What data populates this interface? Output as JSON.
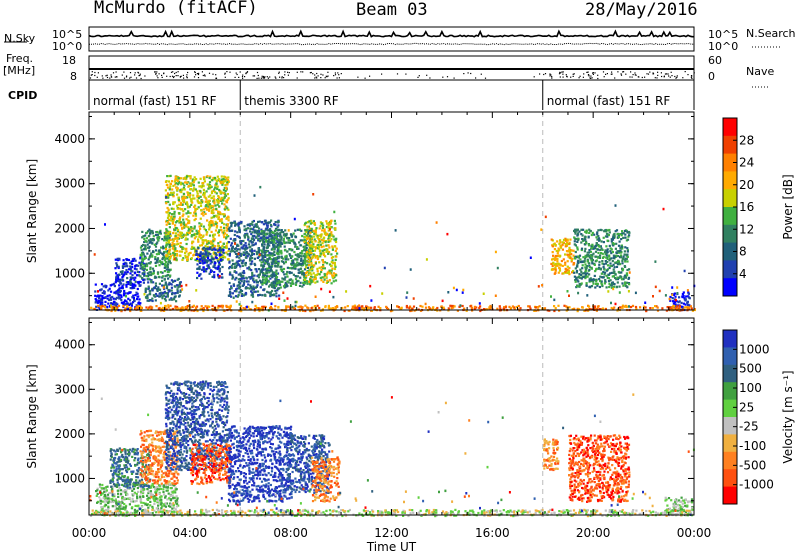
{
  "header": {
    "title": "McMurdo (fitACF)",
    "beam": "Beam 03",
    "date": "28/May/2016"
  },
  "left_labels": {
    "nsky": "N.Sky",
    "freq": "Freq.",
    "freq_unit": "[MHz]",
    "cpid": "CPID"
  },
  "right_labels": {
    "nsearch": "N.Search",
    "nave": "Nave"
  },
  "noise_axis": {
    "left_ticks": [
      "10^5",
      "10^0"
    ],
    "right_ticks": [
      "10^5",
      "10^0"
    ]
  },
  "freq_axis": {
    "left_ticks": [
      "18",
      "8"
    ],
    "right_ticks": [
      "60",
      "0"
    ]
  },
  "cpid_segments": [
    {
      "label": "normal (fast) 151 RF",
      "start_hour": 0,
      "end_hour": 6
    },
    {
      "label": "themis 3300 RF",
      "start_hour": 6,
      "end_hour": 18
    },
    {
      "label": "normal (fast) 151 RF",
      "start_hour": 18,
      "end_hour": 24
    }
  ],
  "chart_data": [
    {
      "type": "heatmap",
      "name": "power",
      "ylabel": "Slant Range [km]",
      "xlabel": "",
      "x_ticks": [
        "00:00",
        "04:00",
        "08:00",
        "12:00",
        "16:00",
        "20:00",
        "00:00"
      ],
      "xlim_hours": [
        0,
        24
      ],
      "ylim": [
        180,
        4600
      ],
      "y_ticks": [
        1000,
        2000,
        3000,
        4000
      ],
      "colorbar": {
        "label": "Power [dB]",
        "ticks": [
          "28",
          "24",
          "20",
          "16",
          "12",
          "8",
          "4"
        ],
        "colors": [
          "#ff0000",
          "#f04000",
          "#ff8000",
          "#ffaa00",
          "#c8d000",
          "#40b040",
          "#308060",
          "#20607a",
          "#2040b0",
          "#0000ff"
        ]
      },
      "scan_boundaries_hours": [
        6,
        18
      ],
      "blobs": [
        {
          "t0": 0.2,
          "t1": 2.0,
          "r0": 200,
          "r1": 800,
          "level": 9
        },
        {
          "t0": 1.0,
          "t1": 2.2,
          "r0": 800,
          "r1": 1400,
          "level": 8
        },
        {
          "t0": 2.2,
          "t1": 3.6,
          "r0": 400,
          "r1": 900,
          "level": 7
        },
        {
          "t0": 2.0,
          "t1": 3.2,
          "r0": 900,
          "r1": 2000,
          "level": 6
        },
        {
          "t0": 3.0,
          "t1": 5.5,
          "r0": 1300,
          "r1": 3200,
          "level": 4
        },
        {
          "t0": 4.2,
          "t1": 5.3,
          "r0": 900,
          "r1": 1600,
          "level": 8
        },
        {
          "t0": 5.5,
          "t1": 7.5,
          "r0": 500,
          "r1": 2200,
          "level": 7
        },
        {
          "t0": 6.8,
          "t1": 8.8,
          "r0": 700,
          "r1": 2000,
          "level": 6
        },
        {
          "t0": 8.5,
          "t1": 9.8,
          "r0": 800,
          "r1": 2200,
          "level": 4
        },
        {
          "t0": 18.3,
          "t1": 19.2,
          "r0": 1000,
          "r1": 1800,
          "level": 3
        },
        {
          "t0": 19.2,
          "t1": 21.4,
          "r0": 700,
          "r1": 2000,
          "level": 6
        },
        {
          "t0": 23.0,
          "t1": 23.8,
          "r0": 200,
          "r1": 600,
          "level": 9
        },
        {
          "t0": 0.0,
          "t1": 24.0,
          "r0": 180,
          "r1": 300,
          "level": 2
        }
      ]
    },
    {
      "type": "heatmap",
      "name": "velocity",
      "ylabel": "Slant Range [km]",
      "xlabel": "Time UT",
      "x_ticks": [
        "00:00",
        "04:00",
        "08:00",
        "12:00",
        "16:00",
        "20:00",
        "00:00"
      ],
      "xlim_hours": [
        0,
        24
      ],
      "ylim": [
        180,
        4600
      ],
      "y_ticks": [
        1000,
        2000,
        3000,
        4000
      ],
      "colorbar": {
        "label": "Velocity [m s⁻¹]",
        "ticks": [
          "1000",
          "500",
          "100",
          "25",
          "-25",
          "-100",
          "-500",
          "-1000"
        ],
        "colors": [
          "#2030c0",
          "#3060b0",
          "#306080",
          "#40a040",
          "#60d040",
          "#c0c0c0",
          "#f0b040",
          "#ff8020",
          "#ff5010",
          "#ff0000"
        ]
      },
      "scan_boundaries_hours": [
        6,
        18
      ],
      "blobs": [
        {
          "t0": 0.2,
          "t1": 3.5,
          "r0": 200,
          "r1": 900,
          "level": 4
        },
        {
          "t0": 0.8,
          "t1": 2.4,
          "r0": 800,
          "r1": 1700,
          "level": 2
        },
        {
          "t0": 2.0,
          "t1": 3.5,
          "r0": 900,
          "r1": 2100,
          "level": 7
        },
        {
          "t0": 3.0,
          "t1": 5.5,
          "r0": 1200,
          "r1": 3200,
          "level": 1
        },
        {
          "t0": 4.0,
          "t1": 5.6,
          "r0": 900,
          "r1": 1800,
          "level": 8
        },
        {
          "t0": 5.5,
          "t1": 8.0,
          "r0": 500,
          "r1": 2200,
          "level": 0
        },
        {
          "t0": 7.8,
          "t1": 9.5,
          "r0": 700,
          "r1": 2000,
          "level": 1
        },
        {
          "t0": 8.8,
          "t1": 9.9,
          "r0": 500,
          "r1": 1500,
          "level": 7
        },
        {
          "t0": 18.0,
          "t1": 18.6,
          "r0": 1200,
          "r1": 1900,
          "level": 7
        },
        {
          "t0": 19.0,
          "t1": 21.4,
          "r0": 500,
          "r1": 2000,
          "level": 8
        },
        {
          "t0": 22.8,
          "t1": 23.9,
          "r0": 200,
          "r1": 600,
          "level": 4
        },
        {
          "t0": 0.0,
          "t1": 24.0,
          "r0": 180,
          "r1": 320,
          "level": 5
        }
      ]
    }
  ]
}
